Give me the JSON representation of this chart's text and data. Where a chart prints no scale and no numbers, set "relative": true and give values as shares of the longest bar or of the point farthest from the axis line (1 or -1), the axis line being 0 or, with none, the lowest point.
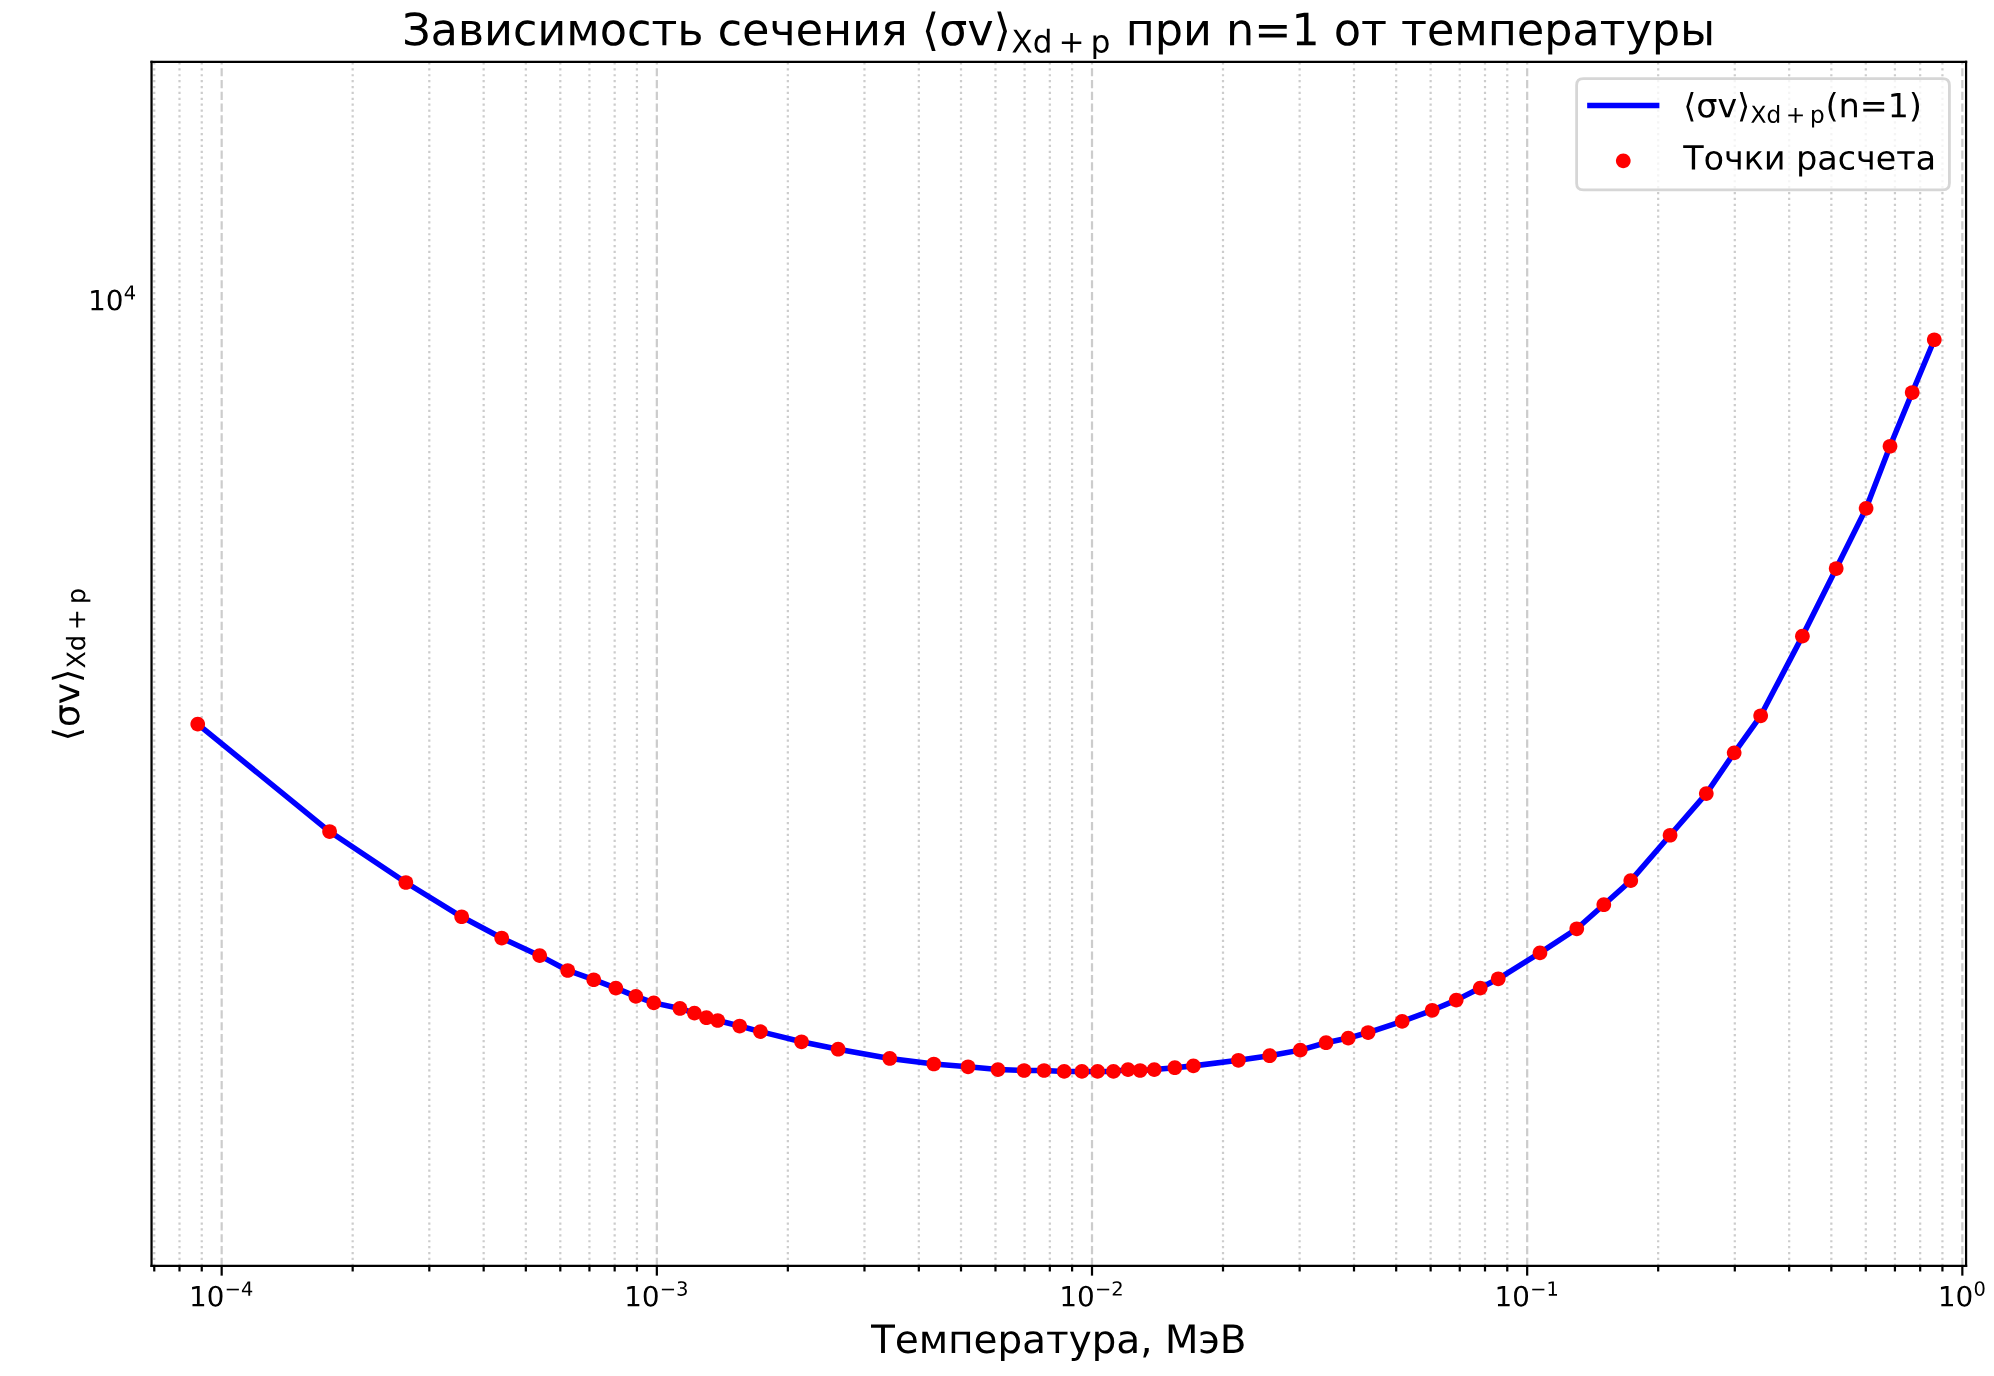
{
  "chart_data": {
    "type": "line",
    "title": "Зависимость сечения ⟨σv⟩$_{Xd+p}$ при n=1 от температуры",
    "xlabel": "Температура, МэВ",
    "ylabel": "⟨σv⟩$_{Xd+p}$",
    "annotations": [
      "10$^{4}$"
    ],
    "relative": true,
    "log": "x",
    "xlim": [
      6.9e-05,
      1.02
    ],
    "xticks": [
      {
        "value": 7e-05,
        "label": null
      },
      {
        "value": 8e-05,
        "label": null
      },
      {
        "value": 9e-05,
        "label": null
      },
      {
        "value": 0.0001,
        "label": "10$^{−4}$"
      },
      {
        "value": 0.0002,
        "label": null
      },
      {
        "value": 0.0003,
        "label": null
      },
      {
        "value": 0.0004,
        "label": null
      },
      {
        "value": 0.0005,
        "label": null
      },
      {
        "value": 0.0006,
        "label": null
      },
      {
        "value": 0.0007,
        "label": null
      },
      {
        "value": 0.0008,
        "label": null
      },
      {
        "value": 0.0009,
        "label": null
      },
      {
        "value": 0.001,
        "label": "10$^{−3}$"
      },
      {
        "value": 0.002,
        "label": null
      },
      {
        "value": 0.003,
        "label": null
      },
      {
        "value": 0.004,
        "label": null
      },
      {
        "value": 0.005,
        "label": null
      },
      {
        "value": 0.006,
        "label": null
      },
      {
        "value": 0.007,
        "label": null
      },
      {
        "value": 0.008,
        "label": null
      },
      {
        "value": 0.009,
        "label": null
      },
      {
        "value": 0.01,
        "label": "10$^{−2}$"
      },
      {
        "value": 0.02,
        "label": null
      },
      {
        "value": 0.03,
        "label": null
      },
      {
        "value": 0.04,
        "label": null
      },
      {
        "value": 0.05,
        "label": null
      },
      {
        "value": 0.06,
        "label": null
      },
      {
        "value": 0.07,
        "label": null
      },
      {
        "value": 0.08,
        "label": null
      },
      {
        "value": 0.09,
        "label": null
      },
      {
        "value": 0.1,
        "label": "10$^{−1}$"
      },
      {
        "value": 0.2,
        "label": null
      },
      {
        "value": 0.3,
        "label": null
      },
      {
        "value": 0.4,
        "label": null
      },
      {
        "value": 0.5,
        "label": null
      },
      {
        "value": 0.6,
        "label": null
      },
      {
        "value": 0.7,
        "label": null
      },
      {
        "value": 0.8,
        "label": null
      },
      {
        "value": 0.9,
        "label": null
      },
      {
        "value": 1,
        "label": "10$^{0}$"
      }
    ],
    "grid": "x",
    "legend": "top right",
    "x": [
      8.81e-05,
      0.000177,
      0.000265,
      0.000356,
      0.00044,
      0.000538,
      0.000624,
      0.000716,
      0.000805,
      0.000895,
      0.000984,
      0.00113,
      0.00122,
      0.0013,
      0.00138,
      0.00155,
      0.00173,
      0.00215,
      0.00261,
      0.00343,
      0.00433,
      0.00519,
      0.00608,
      0.00698,
      0.00776,
      0.00863,
      0.00948,
      0.0103,
      0.0112,
      0.0121,
      0.0129,
      0.0139,
      0.0155,
      0.0171,
      0.0217,
      0.0256,
      0.0301,
      0.0345,
      0.0388,
      0.0431,
      0.0516,
      0.0605,
      0.0687,
      0.078,
      0.0858,
      0.107,
      0.13,
      0.15,
      0.173,
      0.213,
      0.258,
      0.299,
      0.344,
      0.429,
      0.513,
      0.601,
      0.682,
      0.767,
      0.862
    ],
    "series": [
      {
        "name": "⟨σv⟩$_{Xd+p}$(n=1)",
        "color": "#0000ff",
        "marker": "none",
        "line_style": "solid",
        "values": [
          0.585,
          0.469,
          0.414,
          0.377,
          0.354,
          0.335,
          0.319,
          0.309,
          0.3,
          0.291,
          0.284,
          0.278,
          0.273,
          0.268,
          0.265,
          0.259,
          0.253,
          0.242,
          0.234,
          0.224,
          0.218,
          0.215,
          0.212,
          0.211,
          0.211,
          0.21,
          0.21,
          0.21,
          0.21,
          0.212,
          0.211,
          0.212,
          0.214,
          0.216,
          0.222,
          0.227,
          0.233,
          0.241,
          0.246,
          0.252,
          0.264,
          0.276,
          0.287,
          0.3,
          0.31,
          0.338,
          0.364,
          0.39,
          0.416,
          0.465,
          0.51,
          0.554,
          0.594,
          0.68,
          0.753,
          0.818,
          0.885,
          0.943,
          1
        ]
      },
      {
        "name": "Точки расчета",
        "type": "scatter",
        "color": "#ff0000",
        "marker": "circle",
        "values": [
          0.585,
          0.469,
          0.414,
          0.377,
          0.354,
          0.335,
          0.319,
          0.309,
          0.3,
          0.291,
          0.284,
          0.278,
          0.273,
          0.268,
          0.265,
          0.259,
          0.253,
          0.242,
          0.234,
          0.224,
          0.218,
          0.215,
          0.212,
          0.211,
          0.211,
          0.21,
          0.21,
          0.21,
          0.21,
          0.212,
          0.211,
          0.212,
          0.214,
          0.216,
          0.222,
          0.227,
          0.233,
          0.241,
          0.246,
          0.252,
          0.264,
          0.276,
          0.287,
          0.3,
          0.31,
          0.338,
          0.364,
          0.39,
          0.416,
          0.465,
          0.51,
          0.554,
          0.594,
          0.68,
          0.753,
          0.818,
          0.885,
          0.943,
          1
        ]
      }
    ]
  }
}
